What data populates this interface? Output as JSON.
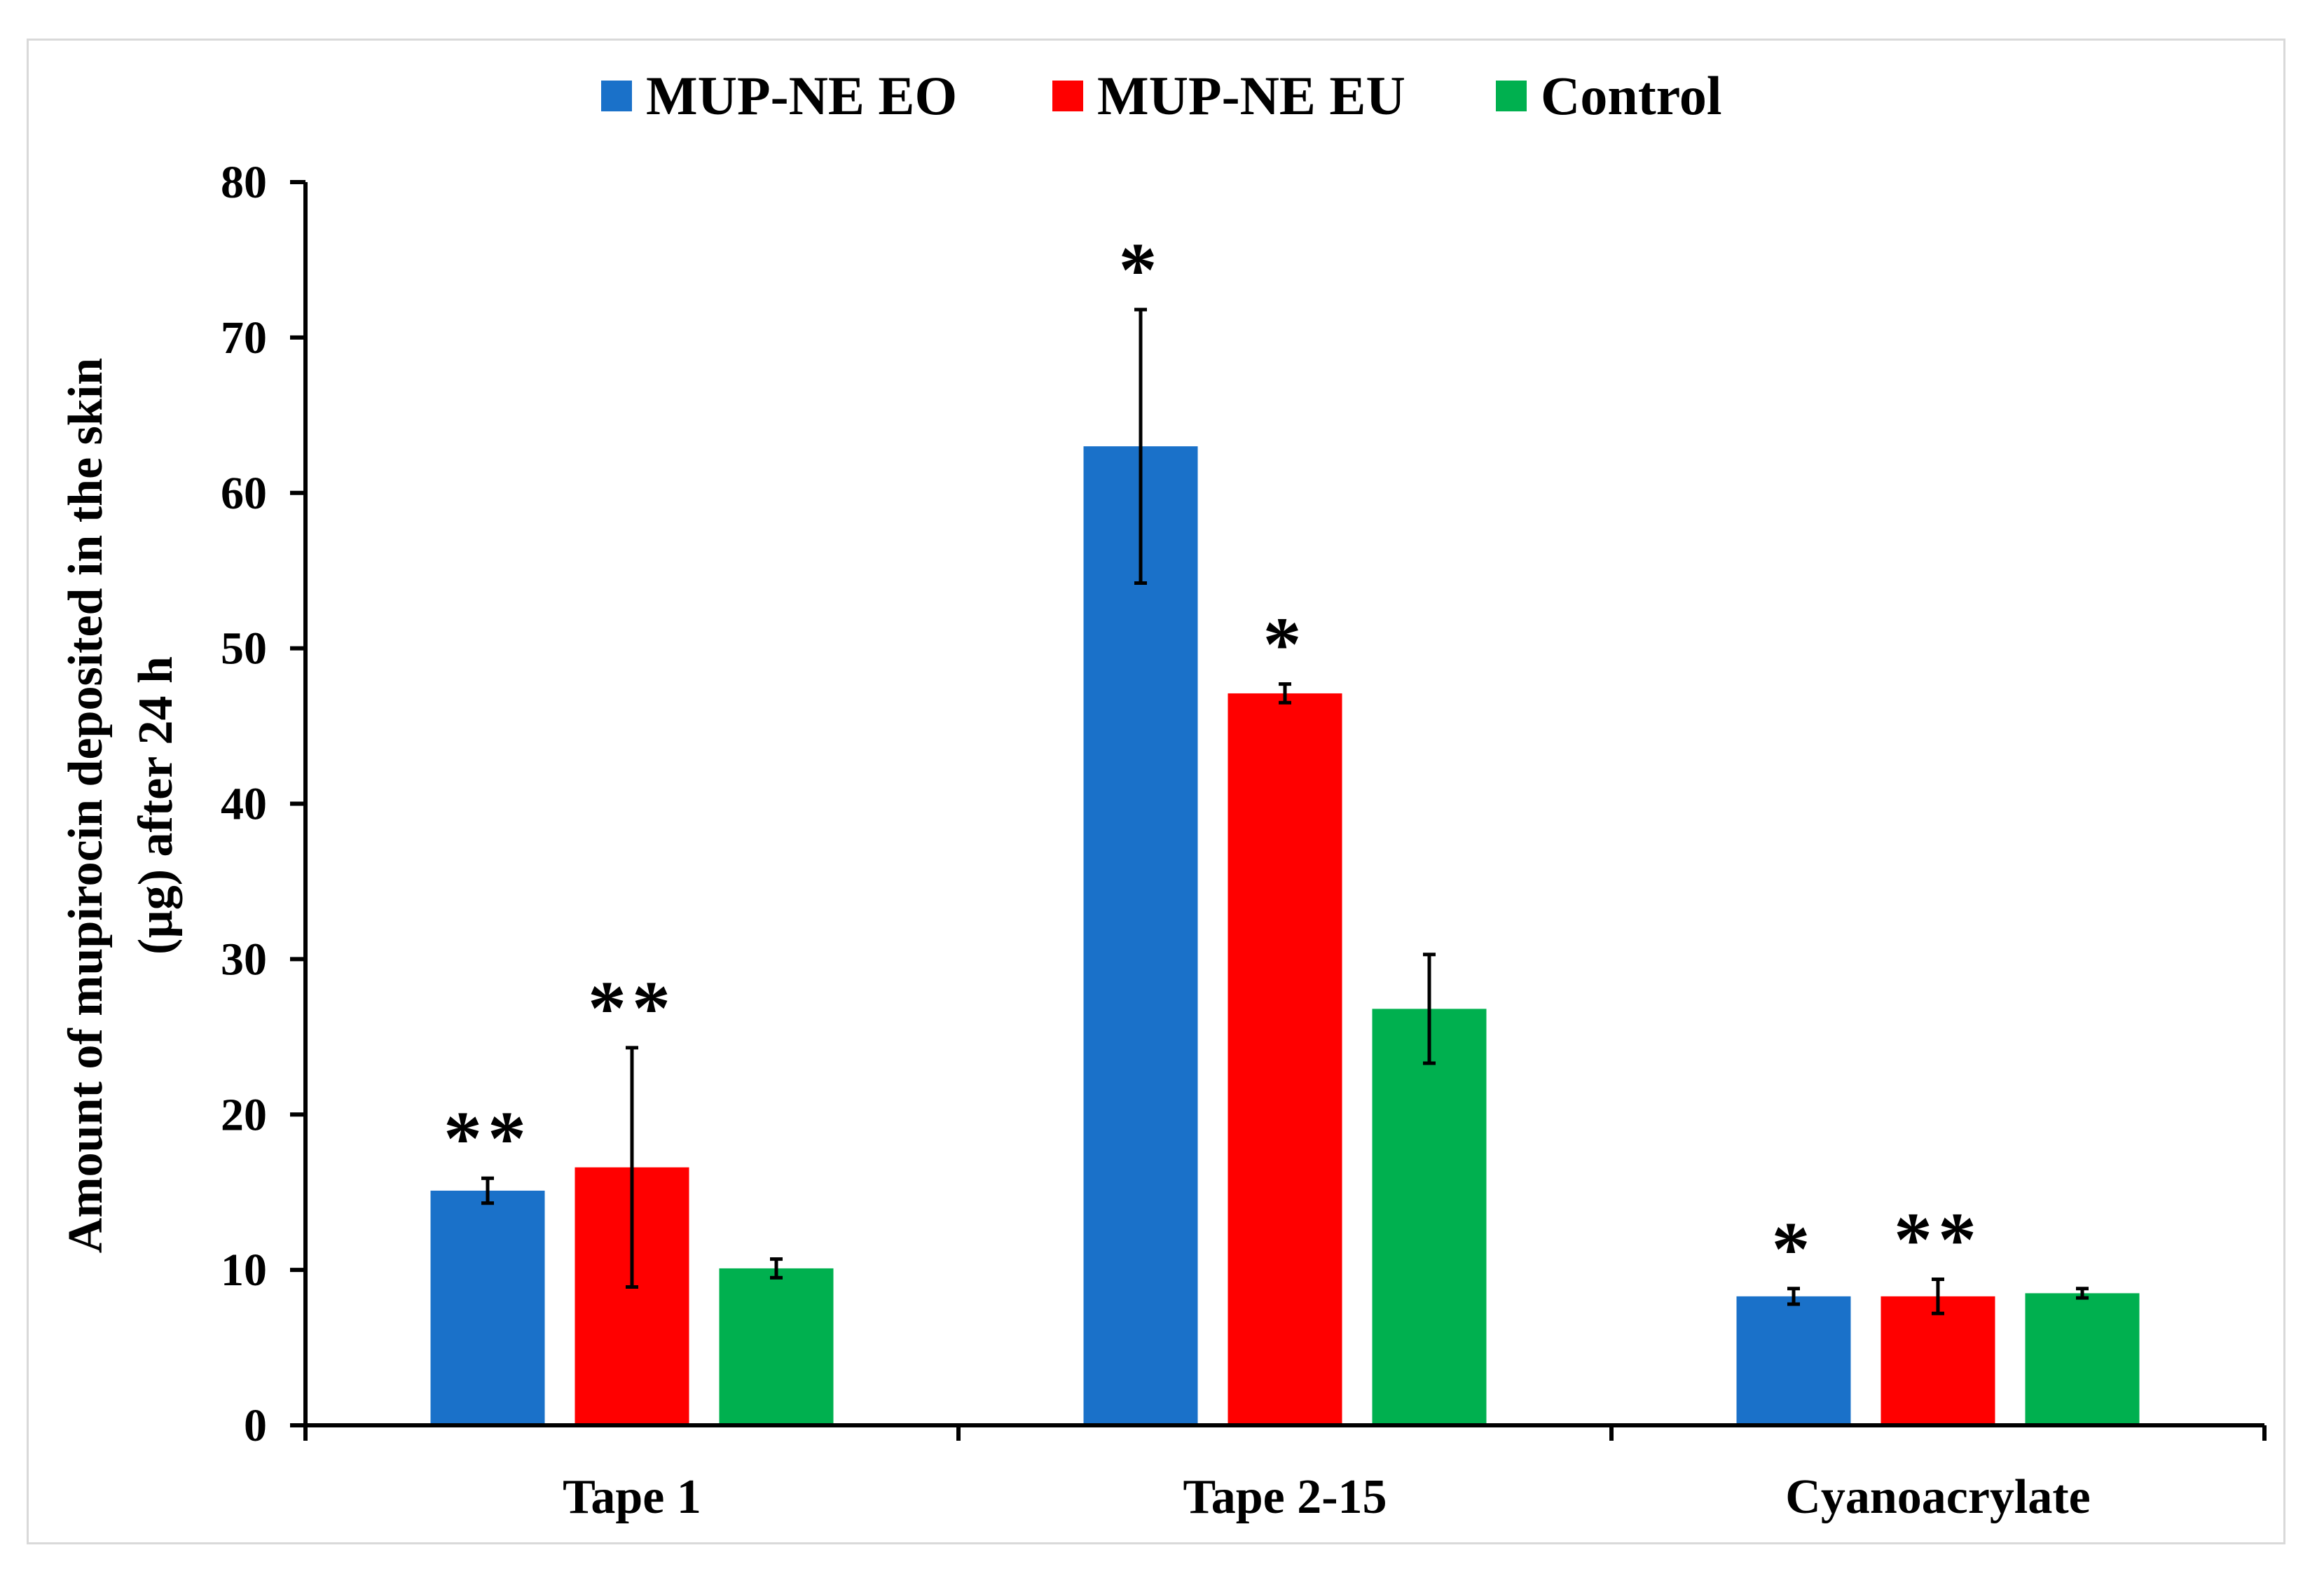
{
  "chart_data": {
    "type": "bar",
    "title": "",
    "xlabel": "",
    "ylabel_lines": [
      "Amount of mupirocin deposited in the skin",
      "(µg) after 24 h"
    ],
    "ylim": [
      0,
      80
    ],
    "yticks": [
      0,
      10,
      20,
      30,
      40,
      50,
      60,
      70,
      80
    ],
    "grid": false,
    "legend_position": "top-center",
    "categories": [
      "Tape 1",
      "Tape 2-15",
      "Cyanoacrylate"
    ],
    "series": [
      {
        "name": "MUP-NE EO",
        "color": "#1a71c9",
        "values": [
          15.1,
          63.0,
          8.3
        ],
        "errors": [
          0.8,
          8.8,
          0.5
        ],
        "significance": [
          "**",
          "*",
          "*"
        ]
      },
      {
        "name": "MUP-NE EU",
        "color": "#ff0000",
        "values": [
          16.6,
          47.1,
          8.3
        ],
        "errors": [
          7.7,
          0.6,
          1.1
        ],
        "significance": [
          "**",
          "*",
          "**"
        ]
      },
      {
        "name": "Control",
        "color": "#00b04f",
        "values": [
          10.1,
          26.8,
          8.5
        ],
        "errors": [
          0.6,
          3.5,
          0.3
        ],
        "significance": [
          "",
          "",
          ""
        ]
      }
    ]
  }
}
